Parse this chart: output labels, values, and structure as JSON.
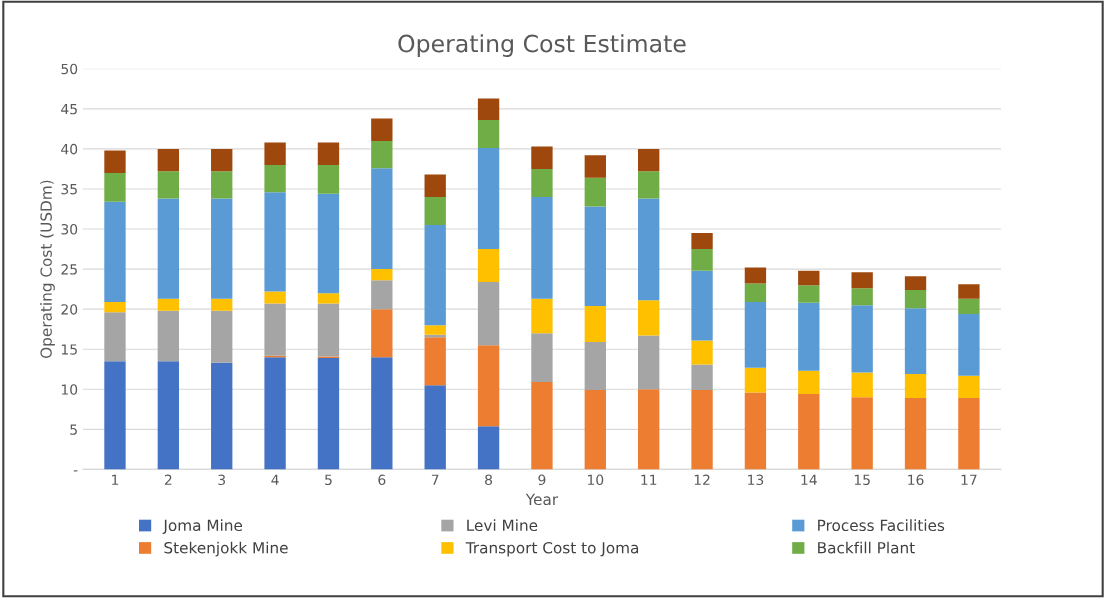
{
  "chart_data": {
    "type": "bar",
    "stacked": true,
    "title": "Operating Cost Estimate",
    "xlabel": "Year",
    "ylabel": "Operating Cost (USDm)",
    "categories": [
      "1",
      "2",
      "3",
      "4",
      "5",
      "6",
      "7",
      "8",
      "9",
      "10",
      "11",
      "12",
      "13",
      "14",
      "15",
      "16",
      "17"
    ],
    "ylim": [
      0,
      50
    ],
    "yticks": [
      {
        "value": 0,
        "label": "-"
      },
      5,
      10,
      15,
      20,
      25,
      30,
      35,
      40,
      45,
      50
    ],
    "grid": "y",
    "legend": "bottom",
    "series": [
      {
        "name": "Joma Mine",
        "color": "#4472c4",
        "values": [
          13.5,
          13.5,
          13.3,
          14.0,
          13.9,
          14.0,
          10.5,
          5.4,
          0,
          0,
          0,
          0,
          0,
          0,
          0,
          0,
          0
        ]
      },
      {
        "name": "Stekenjokk Mine",
        "color": "#ed7d31",
        "values": [
          0,
          0,
          0,
          0.2,
          0.2,
          6.0,
          6.0,
          10.1,
          10.9,
          9.9,
          10.0,
          9.9,
          9.6,
          9.4,
          9.0,
          8.9,
          8.9
        ]
      },
      {
        "name": "Levi Mine",
        "color": "#a5a5a5",
        "values": [
          6.1,
          6.3,
          6.5,
          6.5,
          6.6,
          3.6,
          0.3,
          7.9,
          6.1,
          6.0,
          6.7,
          3.2,
          0,
          0,
          0,
          0,
          0
        ]
      },
      {
        "name": "Transport Cost to Joma",
        "color": "#ffc000",
        "values": [
          1.3,
          1.5,
          1.5,
          1.5,
          1.3,
          1.4,
          1.2,
          4.1,
          4.3,
          4.5,
          4.4,
          3.0,
          3.1,
          2.9,
          3.1,
          3.0,
          2.8
        ]
      },
      {
        "name": "Process Facilities",
        "color": "#5b9bd5",
        "values": [
          12.5,
          12.5,
          12.5,
          12.4,
          12.4,
          12.6,
          12.5,
          12.6,
          12.7,
          12.4,
          12.7,
          8.7,
          8.2,
          8.5,
          8.4,
          8.2,
          7.7
        ]
      },
      {
        "name": "Backfill Plant",
        "color": "#70ad47",
        "values": [
          3.6,
          3.4,
          3.4,
          3.4,
          3.6,
          3.4,
          3.5,
          3.5,
          3.5,
          3.6,
          3.4,
          2.7,
          2.3,
          2.2,
          2.1,
          2.3,
          1.9
        ]
      },
      {
        "color": "#9e480e",
        "values": [
          2.8,
          2.8,
          2.8,
          2.8,
          2.8,
          2.8,
          2.8,
          2.7,
          2.8,
          2.8,
          2.8,
          2.0,
          2.0,
          1.8,
          2.0,
          1.7,
          1.8
        ]
      }
    ]
  }
}
